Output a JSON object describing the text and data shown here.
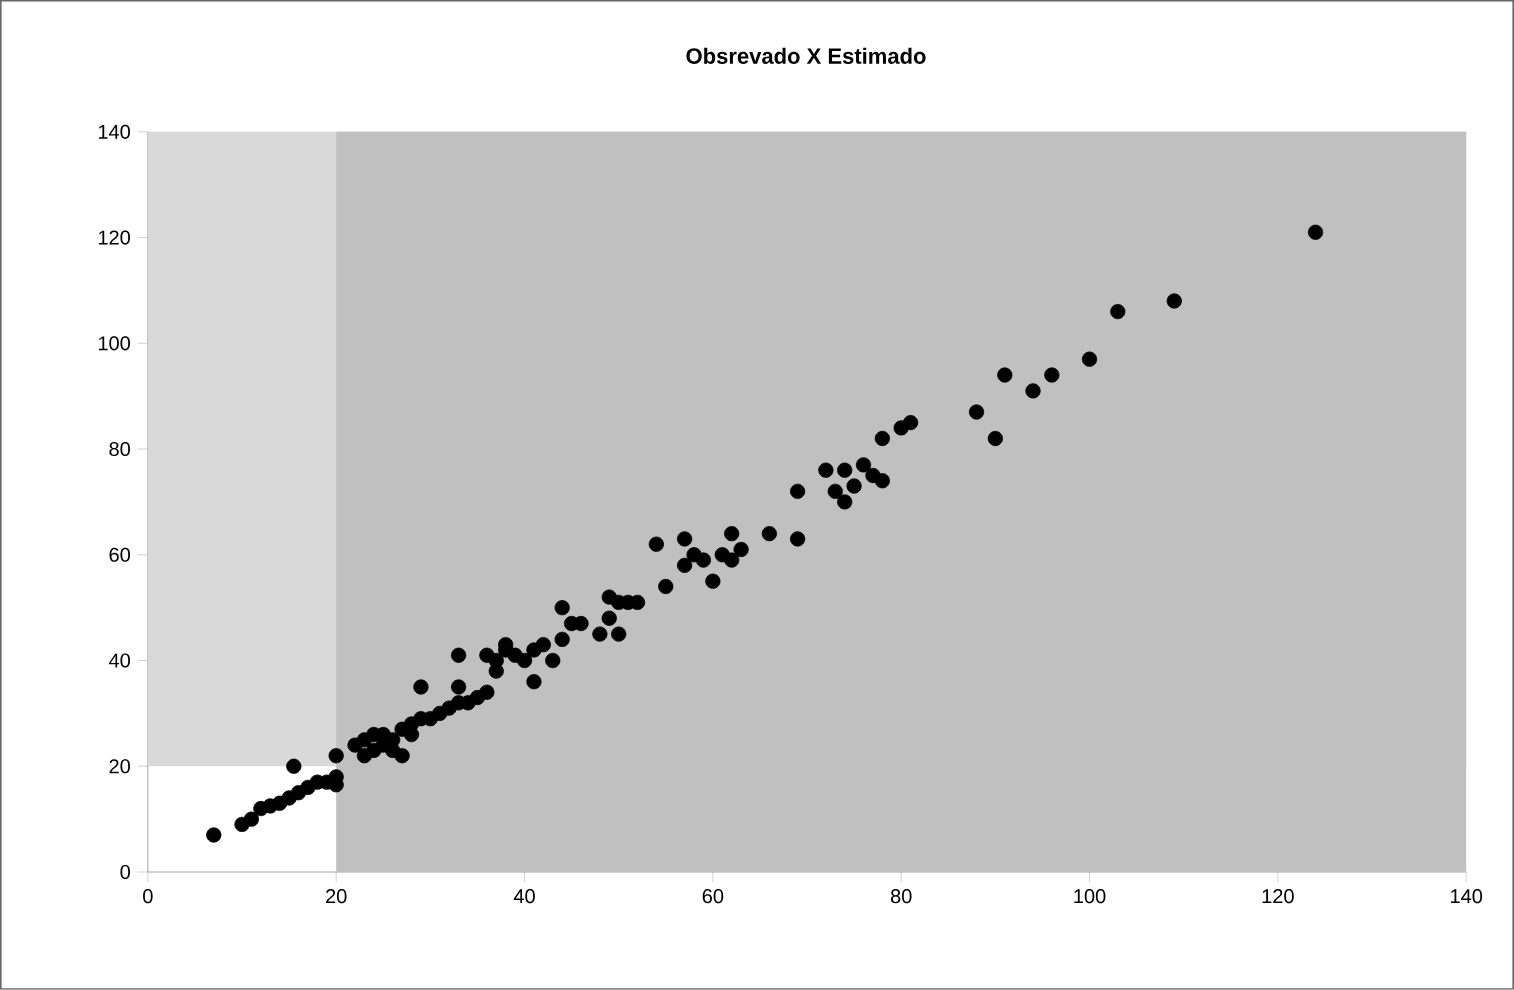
{
  "chart_data": {
    "type": "scatter",
    "title": "Obsrevado X Estimado",
    "x": [
      7,
      10,
      11,
      12,
      13,
      14,
      15,
      15.5,
      16,
      17,
      18,
      19,
      20,
      20,
      20,
      22,
      23,
      23,
      24,
      24,
      25,
      25,
      26,
      26,
      27,
      27,
      28,
      28,
      29,
      29,
      30,
      31,
      32,
      33,
      33,
      33,
      34,
      35,
      36,
      36,
      37,
      37,
      38,
      38,
      39,
      40,
      41,
      41,
      42,
      43,
      44,
      44,
      45,
      46,
      48,
      49,
      49,
      50,
      50,
      51,
      52,
      54,
      55,
      57,
      57,
      58,
      59,
      60,
      61,
      62,
      62,
      63,
      66,
      69,
      69,
      72,
      73,
      74,
      74,
      75,
      76,
      77,
      78,
      78,
      80,
      81,
      88,
      90,
      91,
      94,
      96,
      100,
      103,
      109,
      124
    ],
    "values": [
      7,
      9,
      10,
      12,
      12.5,
      13,
      14,
      20,
      15,
      16,
      17,
      17,
      16.5,
      22,
      18,
      24,
      25,
      22,
      26,
      23,
      24,
      26,
      25,
      23,
      22,
      27,
      26,
      28,
      29,
      35,
      29,
      30,
      31,
      32,
      35,
      41,
      32,
      33,
      34,
      41,
      40,
      38,
      43,
      42,
      41,
      40,
      42,
      36,
      43,
      40,
      50,
      44,
      47,
      47,
      45,
      52,
      48,
      51,
      45,
      51,
      51,
      62,
      54,
      58,
      63,
      60,
      59,
      55,
      60,
      64,
      59,
      61,
      64,
      72,
      63,
      76,
      72,
      76,
      70,
      73,
      77,
      75,
      74,
      82,
      84,
      85,
      87,
      82,
      94,
      91,
      94,
      97,
      106,
      108,
      121
    ],
    "color": "#000000",
    "marker": "circle",
    "xlim": [
      0,
      140
    ],
    "ylim": [
      0,
      140
    ],
    "xticks": [
      0,
      20,
      40,
      60,
      80,
      100,
      120,
      140
    ],
    "yticks": [
      0,
      20,
      40,
      60,
      80,
      100,
      120,
      140
    ],
    "bands": [
      {
        "axis": "y",
        "from": 20,
        "to": 140,
        "color": "#d9d9d9"
      },
      {
        "axis": "x",
        "from": 20,
        "to": 140,
        "color": "#c0c0c0"
      }
    ],
    "grid": false
  }
}
